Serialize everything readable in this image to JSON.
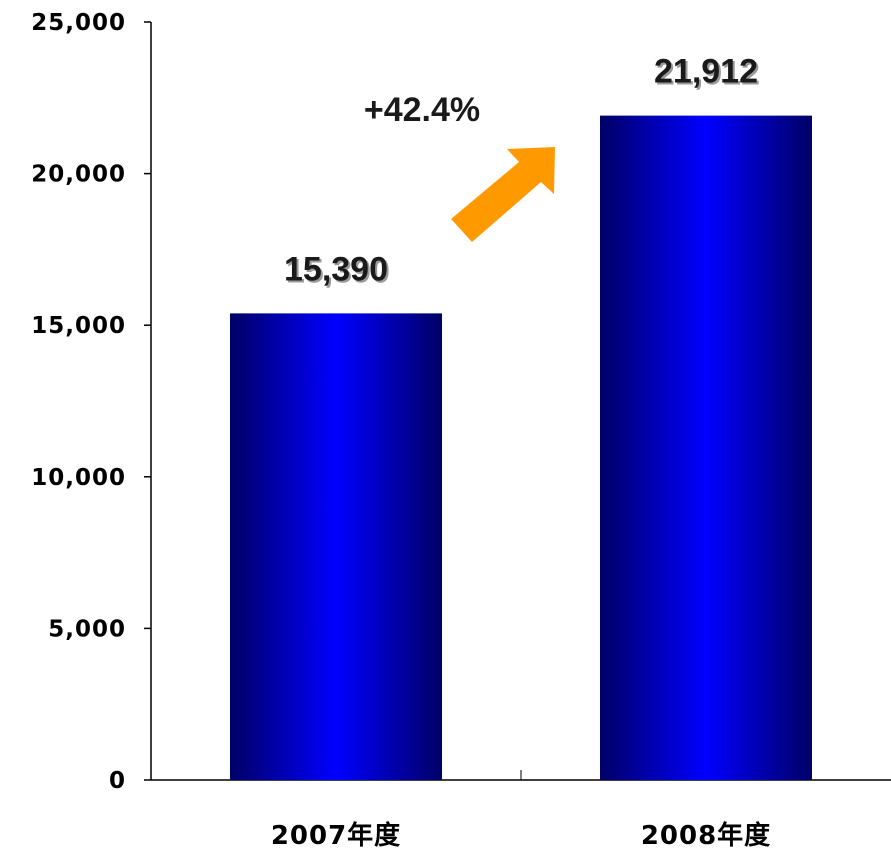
{
  "chart_data": {
    "type": "bar",
    "categories": [
      "2007年度",
      "2008年度"
    ],
    "values": [
      15390,
      21912
    ],
    "value_labels": [
      "15,390",
      "21,912"
    ],
    "ylim": [
      0,
      25000
    ],
    "yticks": [
      0,
      5000,
      10000,
      15000,
      20000,
      25000
    ],
    "ytick_labels": [
      "0",
      "5,000",
      "10,000",
      "15,000",
      "20,000",
      "25,000"
    ],
    "title": "",
    "xlabel": "",
    "ylabel": "",
    "grid": false,
    "annotations": [
      {
        "text": "+42.4%",
        "type": "growth-arrow"
      }
    ],
    "colors": {
      "bar_center": "#0000ff",
      "bar_edge": "#000066",
      "arrow": "#ff9900",
      "axis": "#000000"
    }
  }
}
